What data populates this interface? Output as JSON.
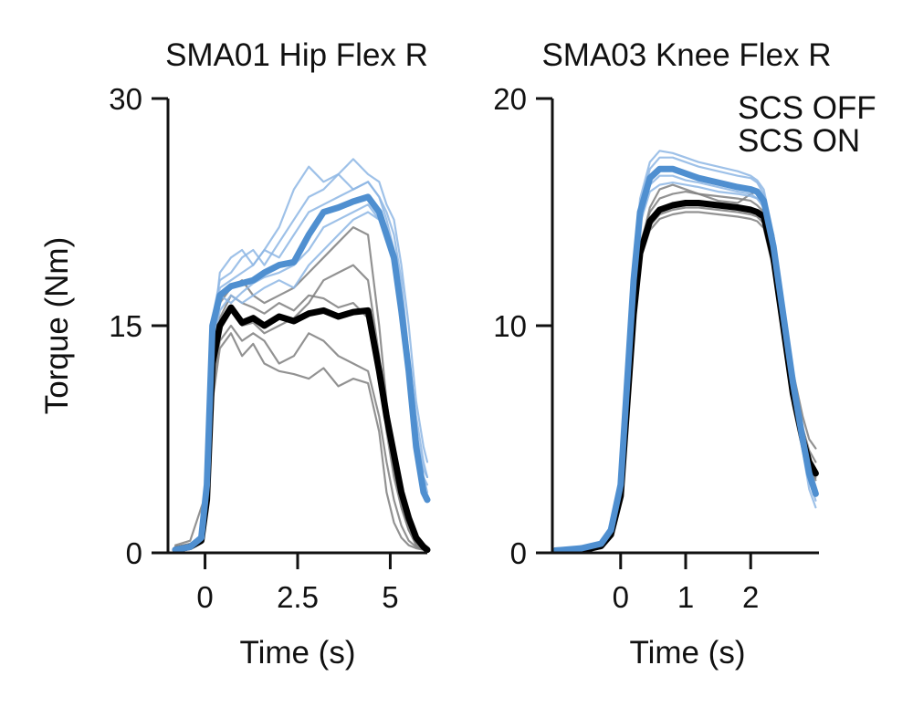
{
  "colors": {
    "off": "#000000",
    "on": "#4f8fd0",
    "off_trial": "#7f7f7f",
    "on_trial": "#8db6e4",
    "axis": "#111111"
  },
  "legend": {
    "off_label": "SCS OFF",
    "on_label": "SCS ON"
  },
  "chart_data": [
    {
      "type": "line",
      "title": "SMA01 Hip Flex R",
      "xlabel": "Time (s)",
      "ylabel": "Torque (Nm)",
      "xlim": [
        -1.0,
        6.0
      ],
      "ylim": [
        0,
        30
      ],
      "xticks": [
        0,
        2.5,
        5
      ],
      "xtick_labels": [
        "0",
        "2.5",
        "5"
      ],
      "yticks": [
        0,
        15,
        30
      ],
      "ytick_labels": [
        "0",
        "15",
        "30"
      ],
      "x": [
        -0.8,
        -0.4,
        -0.1,
        0.05,
        0.2,
        0.4,
        0.7,
        1.0,
        1.3,
        1.6,
        2.0,
        2.4,
        2.8,
        3.2,
        3.6,
        4.0,
        4.4,
        4.7,
        4.9,
        5.1,
        5.3,
        5.5,
        5.7,
        5.9,
        6.0
      ],
      "series": [
        {
          "name": "SCS OFF mean",
          "group": "off",
          "weight": "mean",
          "values": [
            0.2,
            0.4,
            0.8,
            3.5,
            12.5,
            15.0,
            16.2,
            15.2,
            15.5,
            15.0,
            15.6,
            15.3,
            15.8,
            16.0,
            15.6,
            15.9,
            16.0,
            12.0,
            9.0,
            6.5,
            4.0,
            2.3,
            1.0,
            0.4,
            0.2
          ]
        },
        {
          "name": "SCS ON mean",
          "group": "on",
          "weight": "mean",
          "values": [
            0.2,
            0.4,
            1.0,
            4.5,
            15.0,
            17.0,
            17.6,
            17.8,
            18.0,
            18.5,
            19.0,
            19.2,
            21.0,
            22.5,
            22.8,
            23.2,
            23.5,
            22.5,
            21.0,
            19.5,
            16.0,
            12.0,
            7.0,
            4.0,
            3.5
          ]
        },
        {
          "name": "SCS OFF trial 1",
          "group": "off",
          "weight": "trial",
          "values": [
            0.3,
            0.5,
            0.8,
            3.0,
            10.0,
            13.5,
            14.5,
            13.0,
            13.8,
            12.5,
            12.0,
            11.8,
            11.5,
            12.2,
            11.0,
            11.5,
            11.2,
            8.0,
            4.0,
            2.0,
            1.0,
            0.5,
            0.3,
            0.2,
            0.1
          ]
        },
        {
          "name": "SCS OFF trial 2",
          "group": "off",
          "weight": "trial",
          "values": [
            0.5,
            0.8,
            3.0,
            4.0,
            12.0,
            15.5,
            17.0,
            16.5,
            16.2,
            15.8,
            16.5,
            16.0,
            17.0,
            16.8,
            16.2,
            16.5,
            15.5,
            12.0,
            8.0,
            5.0,
            3.0,
            1.5,
            0.6,
            0.3,
            0.2
          ]
        },
        {
          "name": "SCS OFF trial 3",
          "group": "off",
          "weight": "trial",
          "values": [
            0.2,
            0.3,
            0.8,
            3.0,
            11.0,
            14.0,
            15.0,
            14.0,
            14.5,
            14.0,
            12.5,
            13.0,
            14.5,
            14.0,
            13.0,
            12.5,
            12.0,
            9.0,
            6.0,
            3.5,
            1.8,
            0.8,
            0.4,
            0.2,
            0.1
          ]
        },
        {
          "name": "SCS OFF trial 4",
          "group": "off",
          "weight": "trial",
          "values": [
            0.4,
            0.6,
            1.0,
            4.0,
            13.5,
            16.5,
            17.5,
            18.0,
            17.0,
            16.5,
            17.0,
            17.5,
            18.5,
            19.5,
            20.5,
            21.5,
            21.0,
            15.0,
            10.0,
            6.5,
            4.0,
            2.0,
            0.8,
            0.4,
            0.2
          ]
        },
        {
          "name": "SCS OFF trial 5",
          "group": "off",
          "weight": "trial",
          "values": [
            0.2,
            0.4,
            0.9,
            3.5,
            12.0,
            15.0,
            16.0,
            15.0,
            15.2,
            14.5,
            15.0,
            15.5,
            16.5,
            18.0,
            18.5,
            19.0,
            18.0,
            13.0,
            8.5,
            5.5,
            3.0,
            1.5,
            0.5,
            0.2,
            0.1
          ]
        },
        {
          "name": "SCS ON trial 1",
          "group": "on",
          "weight": "trial",
          "values": [
            0.2,
            0.4,
            1.0,
            4.5,
            14.0,
            18.5,
            19.5,
            20.0,
            19.0,
            20.0,
            21.5,
            24.0,
            25.5,
            24.5,
            25.0,
            24.0,
            24.5,
            23.5,
            22.0,
            20.0,
            17.0,
            13.0,
            9.0,
            6.0,
            5.0
          ]
        },
        {
          "name": "SCS ON trial 2",
          "group": "on",
          "weight": "trial",
          "values": [
            0.2,
            0.3,
            0.8,
            4.0,
            13.5,
            16.0,
            17.0,
            16.5,
            17.0,
            17.5,
            18.0,
            17.5,
            19.0,
            20.0,
            21.0,
            22.0,
            22.5,
            22.0,
            20.5,
            19.0,
            15.0,
            11.0,
            7.5,
            5.0,
            4.0
          ]
        },
        {
          "name": "SCS ON trial 3",
          "group": "on",
          "weight": "trial",
          "values": [
            0.3,
            0.5,
            1.2,
            5.0,
            15.5,
            18.0,
            18.5,
            19.5,
            20.0,
            19.0,
            20.5,
            22.0,
            23.5,
            24.0,
            25.0,
            26.0,
            25.0,
            24.5,
            23.0,
            22.0,
            19.0,
            15.0,
            10.0,
            7.0,
            6.0
          ]
        },
        {
          "name": "SCS ON trial 4",
          "group": "on",
          "weight": "trial",
          "values": [
            0.2,
            0.4,
            0.9,
            4.2,
            14.5,
            17.0,
            16.5,
            17.2,
            17.8,
            18.2,
            18.5,
            19.0,
            20.0,
            21.5,
            22.0,
            22.5,
            23.0,
            22.0,
            21.0,
            19.0,
            16.0,
            11.5,
            7.0,
            5.0,
            4.5
          ]
        },
        {
          "name": "SCS ON trial 5",
          "group": "on",
          "weight": "trial",
          "values": [
            0.3,
            0.5,
            1.0,
            4.8,
            15.0,
            17.5,
            18.0,
            18.5,
            19.0,
            20.0,
            19.5,
            21.0,
            22.5,
            23.0,
            23.5,
            24.0,
            24.5,
            23.5,
            22.5,
            21.0,
            18.0,
            13.0,
            8.0,
            5.5,
            5.0
          ]
        }
      ]
    },
    {
      "type": "line",
      "title": "SMA03 Knee Flex R",
      "xlabel": "Time (s)",
      "ylabel": "",
      "xlim": [
        -1.05,
        3.05
      ],
      "ylim": [
        0,
        20
      ],
      "xticks": [
        0,
        1,
        2
      ],
      "xtick_labels": [
        "0",
        "1",
        "2"
      ],
      "yticks": [
        0,
        10,
        20
      ],
      "ytick_labels": [
        "0",
        "10",
        "20"
      ],
      "x": [
        -1.0,
        -0.6,
        -0.3,
        -0.15,
        0.0,
        0.1,
        0.2,
        0.3,
        0.45,
        0.6,
        0.8,
        1.0,
        1.2,
        1.5,
        1.8,
        2.0,
        2.1,
        2.2,
        2.35,
        2.5,
        2.65,
        2.8,
        2.9,
        3.0
      ],
      "series": [
        {
          "name": "SCS OFF mean",
          "group": "off",
          "weight": "mean",
          "values": [
            0.1,
            0.1,
            0.3,
            0.8,
            2.5,
            6.5,
            10.5,
            13.2,
            14.6,
            15.1,
            15.3,
            15.4,
            15.4,
            15.3,
            15.2,
            15.1,
            15.0,
            14.8,
            13.0,
            10.0,
            7.0,
            5.0,
            4.0,
            3.5
          ]
        },
        {
          "name": "SCS ON mean",
          "group": "on",
          "weight": "mean",
          "values": [
            0.1,
            0.2,
            0.4,
            1.0,
            3.0,
            7.5,
            12.0,
            15.0,
            16.5,
            16.9,
            16.9,
            16.7,
            16.5,
            16.3,
            16.1,
            16.0,
            15.9,
            15.5,
            13.5,
            10.5,
            7.5,
            5.0,
            3.5,
            2.6
          ]
        },
        {
          "name": "SCS OFF trial 1",
          "group": "off",
          "weight": "trial",
          "values": [
            0.1,
            0.1,
            0.3,
            0.9,
            2.7,
            6.8,
            10.8,
            13.6,
            15.0,
            15.6,
            15.8,
            15.9,
            15.8,
            15.7,
            15.6,
            15.5,
            15.3,
            15.0,
            13.5,
            10.5,
            7.5,
            5.5,
            4.5,
            4.0
          ]
        },
        {
          "name": "SCS OFF trial 2",
          "group": "off",
          "weight": "trial",
          "values": [
            0.1,
            0.1,
            0.2,
            0.7,
            2.3,
            6.2,
            10.2,
            12.9,
            14.2,
            14.7,
            14.9,
            15.0,
            15.0,
            14.9,
            14.8,
            14.7,
            14.6,
            14.3,
            12.5,
            9.5,
            6.5,
            4.5,
            3.8,
            3.2
          ]
        },
        {
          "name": "SCS OFF trial 3",
          "group": "off",
          "weight": "trial",
          "values": [
            0.2,
            0.2,
            0.4,
            0.9,
            2.6,
            6.6,
            10.6,
            13.4,
            15.2,
            16.0,
            16.2,
            16.0,
            15.8,
            15.5,
            15.4,
            15.8,
            15.9,
            15.6,
            14.0,
            11.0,
            8.0,
            6.0,
            5.0,
            4.6
          ]
        },
        {
          "name": "SCS OFF trial 4",
          "group": "off",
          "weight": "trial",
          "values": [
            0.1,
            0.1,
            0.3,
            0.8,
            2.4,
            6.4,
            10.4,
            13.0,
            14.4,
            14.9,
            15.1,
            15.2,
            15.2,
            15.1,
            15.0,
            14.9,
            14.8,
            14.5,
            12.8,
            9.8,
            6.8,
            4.8,
            3.8,
            3.3
          ]
        },
        {
          "name": "SCS ON trial 1",
          "group": "on",
          "weight": "trial",
          "values": [
            0.1,
            0.2,
            0.4,
            1.1,
            3.2,
            7.8,
            12.5,
            15.6,
            17.2,
            17.7,
            17.6,
            17.4,
            17.2,
            17.0,
            16.8,
            16.6,
            16.4,
            16.0,
            14.0,
            11.0,
            8.0,
            5.5,
            3.8,
            2.8
          ]
        },
        {
          "name": "SCS ON trial 2",
          "group": "on",
          "weight": "trial",
          "values": [
            0.1,
            0.2,
            0.3,
            0.9,
            2.8,
            7.2,
            11.5,
            14.5,
            15.9,
            16.2,
            16.3,
            16.2,
            16.1,
            15.9,
            15.8,
            15.7,
            15.6,
            15.2,
            13.2,
            10.0,
            7.0,
            4.5,
            2.8,
            2.0
          ]
        },
        {
          "name": "SCS ON trial 3",
          "group": "on",
          "weight": "trial",
          "values": [
            0.1,
            0.2,
            0.4,
            1.0,
            3.1,
            7.7,
            12.3,
            15.3,
            16.9,
            17.4,
            17.4,
            17.2,
            17.0,
            16.8,
            16.6,
            16.5,
            16.3,
            15.8,
            13.8,
            10.8,
            7.8,
            5.3,
            3.5,
            2.5
          ]
        },
        {
          "name": "SCS ON trial 4",
          "group": "on",
          "weight": "trial",
          "values": [
            0.1,
            0.2,
            0.4,
            1.0,
            2.9,
            7.4,
            11.8,
            14.8,
            16.2,
            16.6,
            16.6,
            16.4,
            16.3,
            16.1,
            15.9,
            15.8,
            15.6,
            15.3,
            13.3,
            10.3,
            7.3,
            4.8,
            3.2,
            2.3
          ]
        }
      ]
    }
  ]
}
